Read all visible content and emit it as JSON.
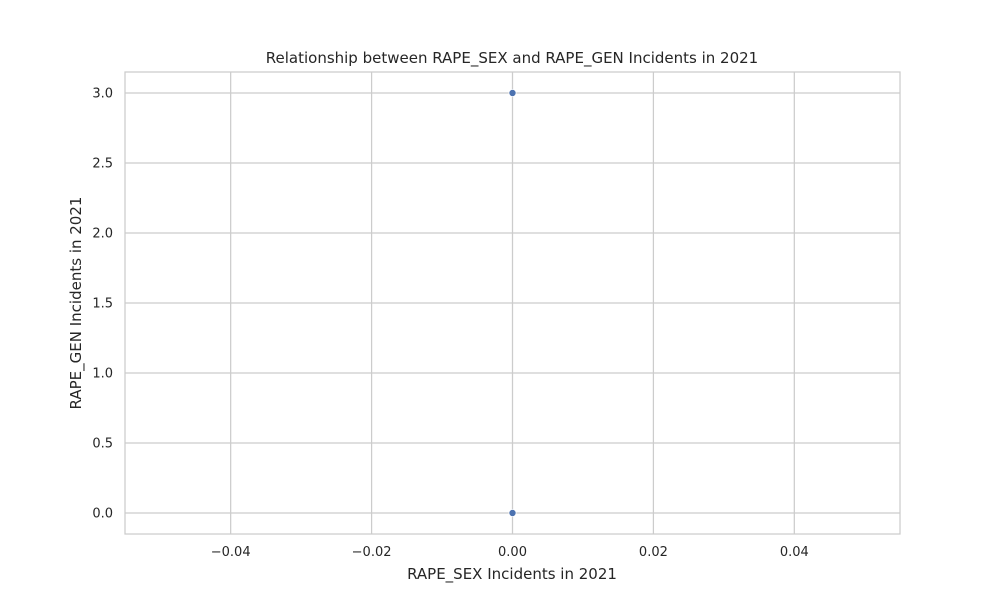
{
  "chart_data": {
    "type": "scatter",
    "title": "Relationship between RAPE_SEX and RAPE_GEN Incidents in 2021",
    "xlabel": "RAPE_SEX Incidents in 2021",
    "ylabel": "RAPE_GEN Incidents in 2021",
    "xlim": [
      -0.055,
      0.055
    ],
    "ylim": [
      -0.15,
      3.15
    ],
    "xticks": [
      -0.04,
      -0.02,
      0.0,
      0.02,
      0.04
    ],
    "xtick_labels": [
      "−0.04",
      "−0.02",
      "0.00",
      "0.02",
      "0.04"
    ],
    "yticks": [
      0.0,
      0.5,
      1.0,
      1.5,
      2.0,
      2.5,
      3.0
    ],
    "ytick_labels": [
      "0.0",
      "0.5",
      "1.0",
      "1.5",
      "2.0",
      "2.5",
      "3.0"
    ],
    "grid": true,
    "series": [
      {
        "color": "#4c72b0",
        "points": [
          {
            "x": 0.0,
            "y": 3.0
          },
          {
            "x": 0.0,
            "y": 0.0
          }
        ]
      }
    ]
  }
}
